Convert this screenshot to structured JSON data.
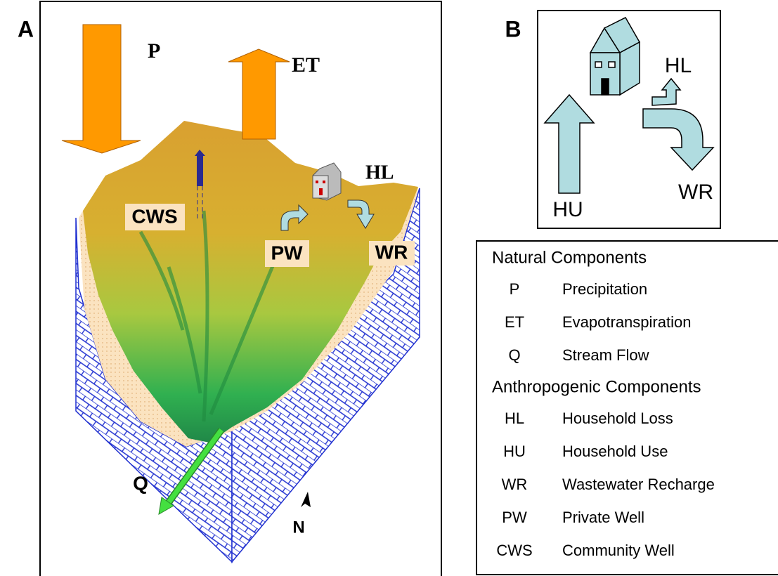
{
  "panel_a": {
    "label": "A",
    "precipitation": "P",
    "evapotranspiration": "ET",
    "household_loss": "HL",
    "community_well": "CWS",
    "private_well": "PW",
    "wastewater_recharge": "WR",
    "stream_flow": "Q",
    "north": "N"
  },
  "panel_b": {
    "label": "B",
    "household_loss": "HL",
    "household_use": "HU",
    "wastewater_recharge": "WR"
  },
  "legend": {
    "sections": [
      {
        "heading": "Natural Components",
        "items": [
          {
            "code": "P",
            "name": "Precipitation"
          },
          {
            "code": "ET",
            "name": "Evapotranspiration"
          },
          {
            "code": "Q",
            "name": "Stream Flow"
          }
        ]
      },
      {
        "heading": "Anthropogenic Components",
        "items": [
          {
            "code": "HL",
            "name": "Household Loss"
          },
          {
            "code": "HU",
            "name": "Household Use"
          },
          {
            "code": "WR",
            "name": "Wastewater Recharge"
          },
          {
            "code": "PW",
            "name": "Private Well"
          },
          {
            "code": "CWS",
            "name": "Community Well"
          }
        ]
      }
    ]
  }
}
